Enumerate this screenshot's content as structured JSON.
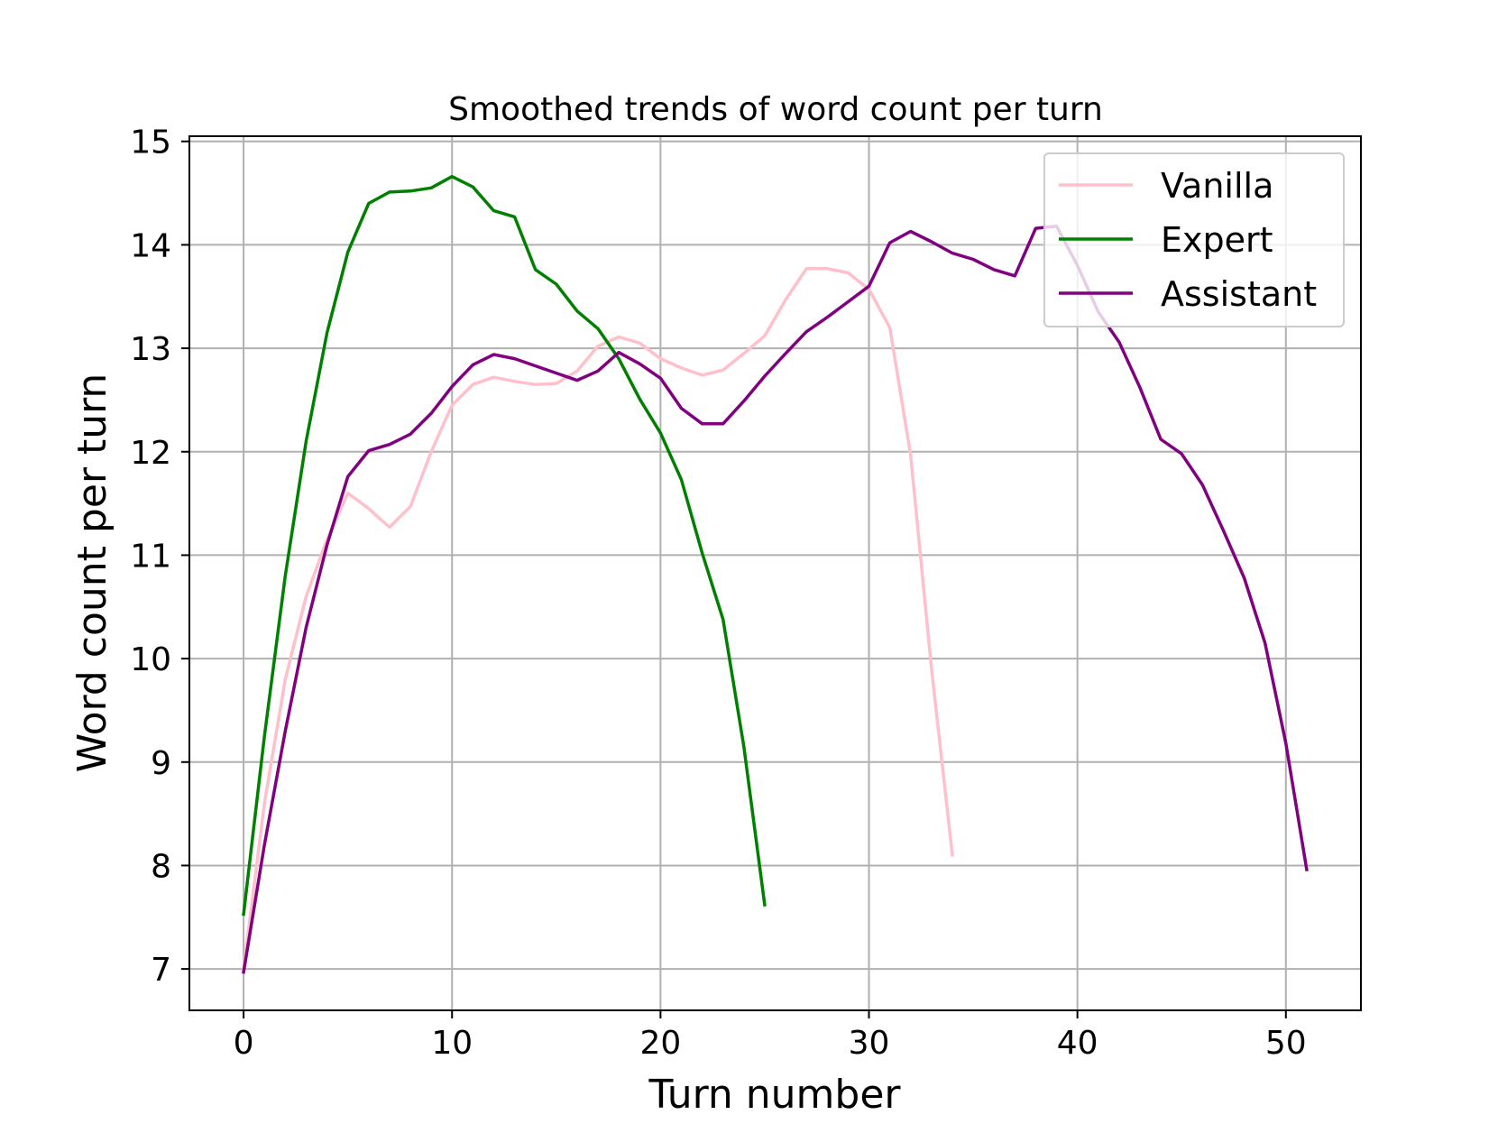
{
  "chart_data": {
    "type": "line",
    "title": "Smoothed trends of word count per turn",
    "xlabel": "Turn number",
    "ylabel": "Word count per turn",
    "xlim": [
      -2.6,
      53.6
    ],
    "ylim": [
      6.6,
      15.05
    ],
    "xticks": [
      0,
      10,
      20,
      30,
      40,
      50
    ],
    "yticks": [
      7,
      8,
      9,
      10,
      11,
      12,
      13,
      14,
      15
    ],
    "grid": true,
    "legend_position": "top-right",
    "series": [
      {
        "name": "Vanilla",
        "color": "#ffc0cb",
        "x": [
          0,
          1,
          2,
          3,
          4,
          5,
          6,
          7,
          8,
          9,
          10,
          11,
          12,
          13,
          14,
          15,
          16,
          17,
          18,
          19,
          20,
          21,
          22,
          23,
          24,
          25,
          26,
          27,
          28,
          29,
          30,
          31,
          32,
          33,
          34
        ],
        "values": [
          7.0,
          8.6,
          9.8,
          10.6,
          11.15,
          11.6,
          11.45,
          11.27,
          11.47,
          12.0,
          12.45,
          12.65,
          12.72,
          12.68,
          12.65,
          12.66,
          12.78,
          13.02,
          13.11,
          13.05,
          12.9,
          12.81,
          12.74,
          12.79,
          12.95,
          13.12,
          13.47,
          13.77,
          13.77,
          13.73,
          13.57,
          13.2,
          11.97,
          9.9,
          8.1
        ]
      },
      {
        "name": "Expert",
        "color": "#008000",
        "x": [
          0,
          1,
          2,
          3,
          4,
          5,
          6,
          7,
          8,
          9,
          10,
          11,
          12,
          13,
          14,
          15,
          16,
          17,
          18,
          19,
          20,
          21,
          22,
          23,
          24,
          25
        ],
        "values": [
          7.53,
          9.25,
          10.8,
          12.1,
          13.15,
          13.93,
          14.4,
          14.51,
          14.52,
          14.55,
          14.66,
          14.56,
          14.33,
          14.27,
          13.76,
          13.62,
          13.36,
          13.19,
          12.9,
          12.51,
          12.18,
          11.73,
          11.02,
          10.38,
          9.15,
          7.62
        ]
      },
      {
        "name": "Assistant",
        "color": "#800080",
        "x": [
          0,
          1,
          2,
          3,
          4,
          5,
          6,
          7,
          8,
          9,
          10,
          11,
          12,
          13,
          14,
          15,
          16,
          17,
          18,
          19,
          20,
          21,
          22,
          23,
          24,
          25,
          26,
          27,
          28,
          29,
          30,
          31,
          32,
          33,
          34,
          35,
          36,
          37,
          38,
          39,
          40,
          41,
          42,
          43,
          44,
          45,
          46,
          47,
          48,
          49,
          50,
          51
        ],
        "values": [
          6.97,
          8.2,
          9.3,
          10.3,
          11.1,
          11.76,
          12.01,
          12.07,
          12.17,
          12.37,
          12.63,
          12.84,
          12.94,
          12.9,
          12.83,
          12.76,
          12.69,
          12.78,
          12.96,
          12.85,
          12.71,
          12.42,
          12.27,
          12.27,
          12.49,
          12.73,
          12.95,
          13.16,
          13.3,
          13.45,
          13.6,
          14.02,
          14.13,
          14.03,
          13.92,
          13.86,
          13.76,
          13.7,
          14.16,
          14.18,
          13.8,
          13.35,
          13.06,
          12.62,
          12.12,
          11.98,
          11.68,
          11.24,
          10.78,
          10.15,
          9.18,
          7.96
        ]
      }
    ]
  }
}
